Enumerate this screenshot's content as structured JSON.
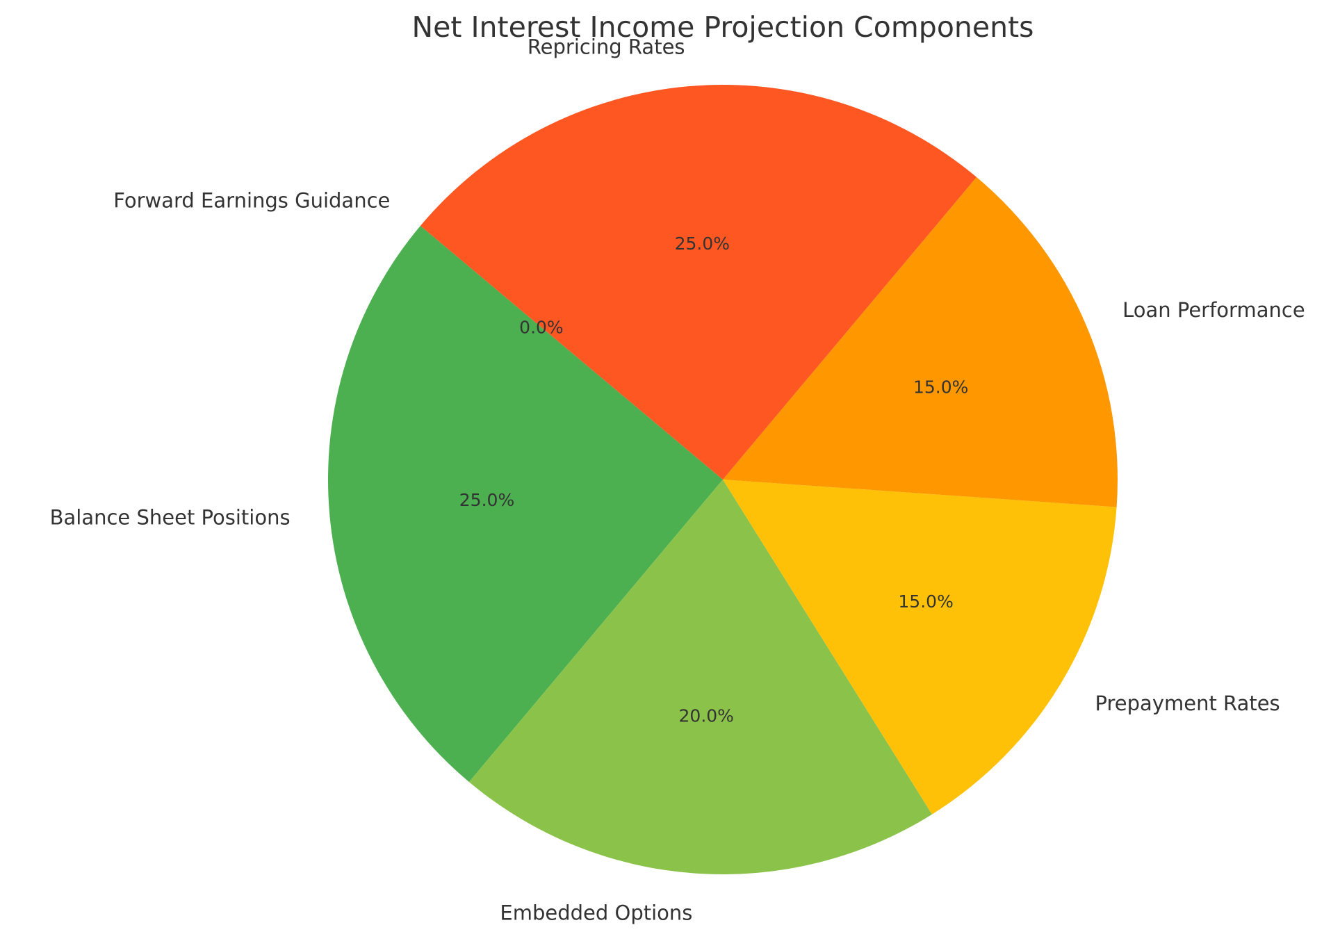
{
  "chart_data": {
    "type": "pie",
    "title": "Net Interest Income Projection Components",
    "start_angle_deg": 140,
    "direction": "counterclockwise",
    "slices": [
      {
        "label": "Forward Earnings Guidance",
        "value": 0.0,
        "pct_text": "0.0%",
        "color": "#E53935"
      },
      {
        "label": "Balance Sheet Positions",
        "value": 25.0,
        "pct_text": "25.0%",
        "color": "#4CAF50"
      },
      {
        "label": "Embedded Options",
        "value": 20.0,
        "pct_text": "20.0%",
        "color": "#8BC34A"
      },
      {
        "label": "Prepayment Rates",
        "value": 15.0,
        "pct_text": "15.0%",
        "color": "#FFC107"
      },
      {
        "label": "Loan Performance",
        "value": 15.0,
        "pct_text": "15.0%",
        "color": "#FF9800"
      },
      {
        "label": "Repricing Rates",
        "value": 25.0,
        "pct_text": "25.0%",
        "color": "#FF5722"
      }
    ]
  }
}
